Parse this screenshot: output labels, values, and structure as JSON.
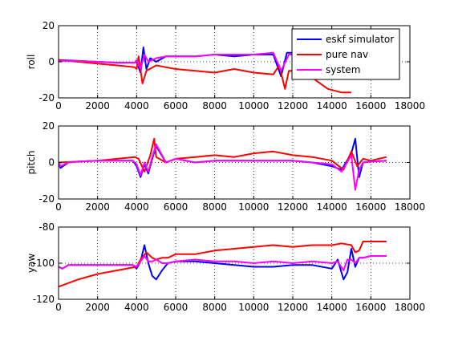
{
  "figure": {
    "background": "#ffffff",
    "axes_color": "#000000",
    "grid_color": "#000000"
  },
  "chart_data": [
    {
      "type": "line",
      "ylabel": "roll",
      "xlim": [
        0,
        18000
      ],
      "ylim": [
        -20,
        20
      ],
      "xticks": [
        "0",
        "2000",
        "4000",
        "6000",
        "8000",
        "10000",
        "12000",
        "14000",
        "16000",
        "18000"
      ],
      "yticks": [
        "-20",
        "0",
        "20"
      ],
      "grid": true,
      "legend": {
        "placement": "top-right",
        "entries": [
          "eskf simulator",
          "pure nav",
          "system"
        ]
      },
      "series": [
        {
          "name": "eskf simulator",
          "color": "#0000ff",
          "x": [
            0,
            1000,
            2000,
            3000,
            3900,
            4000,
            4200,
            4350,
            4500,
            4700,
            5000,
            5500,
            6000,
            7000,
            8000,
            9000,
            10000,
            11000,
            11400,
            11700,
            12000,
            12300,
            12500
          ],
          "y": [
            1,
            0.5,
            0,
            -0.5,
            -0.5,
            0,
            -6,
            8,
            -4,
            2,
            0,
            3,
            3,
            3,
            4,
            3,
            4,
            4,
            -8,
            5,
            5,
            1,
            4
          ]
        },
        {
          "name": "pure nav",
          "color": "#ff0000",
          "x": [
            0,
            1000,
            2000,
            3000,
            3900,
            4000,
            4100,
            4300,
            4500,
            5000,
            5500,
            6000,
            7000,
            8000,
            9000,
            10000,
            11000,
            11300,
            11600,
            11800,
            12000,
            12500,
            13800,
            14500,
            15000
          ],
          "y": [
            1,
            0,
            -1,
            -2,
            -3,
            -4,
            3,
            -12,
            -5,
            -2,
            -3,
            -4,
            -5,
            -6,
            -4,
            -6,
            -7,
            -2,
            -15,
            -5,
            -5,
            -5,
            -15,
            -17,
            -17
          ]
        },
        {
          "name": "system",
          "color": "#ff00ff",
          "x": [
            0,
            1000,
            2000,
            3000,
            3900,
            4000,
            4200,
            4400,
            4600,
            5000,
            5500,
            6000,
            7000,
            8000,
            9000,
            10000,
            11000,
            11400,
            11800,
            12000,
            12300,
            12500
          ],
          "y": [
            0.5,
            0.5,
            0,
            -0.5,
            -0.5,
            1,
            -4,
            4,
            0,
            2,
            3,
            3,
            3,
            4,
            4,
            4,
            5,
            -5,
            4,
            4,
            4,
            5
          ]
        }
      ]
    },
    {
      "type": "line",
      "ylabel": "pitch",
      "xlim": [
        0,
        18000
      ],
      "ylim": [
        -20,
        20
      ],
      "xticks": [
        "0",
        "2000",
        "4000",
        "6000",
        "8000",
        "10000",
        "12000",
        "14000",
        "16000",
        "18000"
      ],
      "yticks": [
        "-20",
        "0",
        "20"
      ],
      "grid": true,
      "series": [
        {
          "name": "eskf simulator",
          "color": "#0000ff",
          "x": [
            0,
            100,
            500,
            1000,
            2000,
            3000,
            3800,
            4000,
            4200,
            4400,
            4600,
            4800,
            5000,
            5500,
            6000,
            7000,
            8000,
            9000,
            10000,
            11000,
            12000,
            13000,
            14000,
            14500,
            15000,
            15200,
            15400,
            15600,
            16000,
            16800
          ],
          "y": [
            0,
            -3,
            0,
            0.5,
            1,
            1,
            1,
            -2,
            -8,
            -1,
            -6,
            2,
            9,
            0,
            2,
            0,
            1,
            1,
            1,
            1,
            1,
            0,
            -2,
            -4,
            5,
            13,
            -8,
            0,
            0.5,
            1
          ]
        },
        {
          "name": "pure nav",
          "color": "#ff0000",
          "x": [
            0,
            1000,
            2000,
            3000,
            3900,
            4100,
            4400,
            4700,
            4900,
            5000,
            5500,
            6000,
            7000,
            8000,
            9000,
            10000,
            11000,
            12000,
            13000,
            14000,
            14600,
            15000,
            15300,
            15600,
            16000,
            16800
          ],
          "y": [
            0,
            0.5,
            1,
            2,
            3,
            2,
            -5,
            4,
            13,
            3,
            0,
            2,
            3,
            4,
            3,
            5,
            6,
            4,
            3,
            1,
            -4,
            6,
            -2,
            2,
            1,
            3
          ]
        },
        {
          "name": "system",
          "color": "#ff00ff",
          "x": [
            0,
            100,
            500,
            1000,
            2000,
            3000,
            3800,
            4000,
            4200,
            4400,
            4600,
            4800,
            5000,
            5500,
            6000,
            7000,
            8000,
            9000,
            10000,
            11000,
            12000,
            13000,
            14000,
            14500,
            15000,
            15200,
            15400,
            15600,
            16000,
            16800
          ],
          "y": [
            0,
            -2,
            0,
            0.5,
            1,
            1,
            1,
            -1,
            -7,
            0,
            -5,
            3,
            10,
            0,
            2,
            0,
            1,
            1,
            1,
            1,
            1,
            0,
            -1,
            -5,
            4,
            -15,
            -4,
            0,
            0.5,
            1
          ]
        }
      ]
    },
    {
      "type": "line",
      "ylabel": "yaw",
      "xlim": [
        0,
        18000
      ],
      "ylim": [
        -120,
        -80
      ],
      "xticks": [
        "0",
        "2000",
        "4000",
        "6000",
        "8000",
        "10000",
        "12000",
        "14000",
        "16000",
        "18000"
      ],
      "yticks": [
        "-120",
        "-100",
        "-80"
      ],
      "grid": true,
      "series": [
        {
          "name": "eskf simulator",
          "color": "#0000ff",
          "x": [
            0,
            200,
            500,
            1000,
            2000,
            3000,
            3800,
            4000,
            4200,
            4400,
            4600,
            4800,
            5000,
            5300,
            5600,
            6000,
            7000,
            8000,
            9000,
            10000,
            11000,
            12000,
            13000,
            14000,
            14300,
            14600,
            14800,
            15000,
            15200,
            15400,
            15600,
            16000,
            16800
          ],
          "y": [
            -102,
            -103,
            -101,
            -101,
            -101,
            -101,
            -101,
            -103,
            -99,
            -90,
            -100,
            -107,
            -109,
            -104,
            -100,
            -99,
            -99,
            -100,
            -101,
            -102,
            -102,
            -101,
            -101,
            -103,
            -98,
            -109,
            -105,
            -92,
            -102,
            -97,
            -97,
            -96,
            -96
          ]
        },
        {
          "name": "pure nav",
          "color": "#ff0000",
          "x": [
            0,
            1000,
            2000,
            3000,
            4000,
            4200,
            4500,
            4800,
            5000,
            5300,
            5600,
            6000,
            7000,
            8000,
            9000,
            10000,
            11000,
            12000,
            13000,
            14000,
            14500,
            15000,
            15200,
            15400,
            15600,
            16000,
            16800
          ],
          "y": [
            -113,
            -109,
            -106,
            -104,
            -102,
            -98,
            -94,
            -97,
            -98,
            -97,
            -97,
            -95,
            -95,
            -93,
            -92,
            -91,
            -90,
            -91,
            -90,
            -90,
            -89,
            -90,
            -94,
            -93,
            -88,
            -88,
            -88
          ]
        },
        {
          "name": "system",
          "color": "#ff00ff",
          "x": [
            0,
            200,
            500,
            1000,
            2000,
            3000,
            3800,
            4000,
            4200,
            4400,
            4600,
            4800,
            5000,
            5300,
            5600,
            6000,
            7000,
            8000,
            9000,
            10000,
            11000,
            12000,
            13000,
            14000,
            14300,
            14600,
            14800,
            15000,
            15200,
            15400,
            15600,
            16000,
            16800
          ],
          "y": [
            -102,
            -103,
            -101,
            -101,
            -101,
            -101,
            -101,
            -102,
            -99,
            -96,
            -99,
            -99,
            -98,
            -100,
            -100,
            -99,
            -98,
            -99,
            -99,
            -100,
            -99,
            -100,
            -99,
            -100,
            -99,
            -104,
            -98,
            -98,
            -100,
            -97,
            -97,
            -96,
            -96
          ]
        }
      ]
    }
  ]
}
